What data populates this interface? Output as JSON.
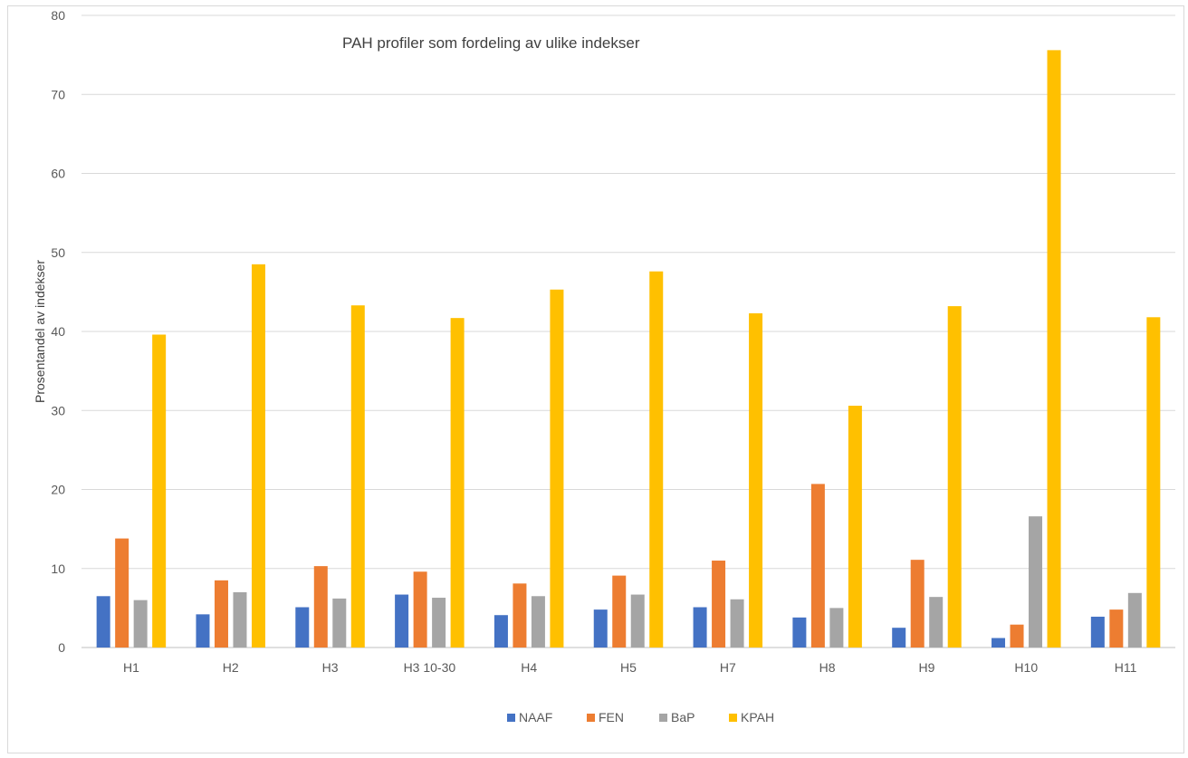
{
  "chart_data": {
    "type": "bar",
    "title": "PAH profiler som fordeling av ulike indekser",
    "xlabel": "",
    "ylabel": "Prosentandel av indekser",
    "ylim": [
      0,
      80
    ],
    "yticks": [
      0,
      10,
      20,
      30,
      40,
      50,
      60,
      70,
      80
    ],
    "grid": true,
    "legend_position": "bottom",
    "categories": [
      "H1",
      "H2",
      "H3",
      "H3 10-30",
      "H4",
      "H5",
      "H7",
      "H8",
      "H9",
      "H10",
      "H11"
    ],
    "series": [
      {
        "name": "NAAF",
        "color": "#4472c4",
        "values": [
          6.5,
          4.2,
          5.1,
          6.7,
          4.1,
          4.8,
          5.1,
          3.8,
          2.5,
          1.2,
          3.9
        ]
      },
      {
        "name": "FEN",
        "color": "#ed7d31",
        "values": [
          13.8,
          8.5,
          10.3,
          9.6,
          8.1,
          9.1,
          11.0,
          20.7,
          11.1,
          2.9,
          4.8
        ]
      },
      {
        "name": "BaP",
        "color": "#a5a5a5",
        "values": [
          6.0,
          7.0,
          6.2,
          6.3,
          6.5,
          6.7,
          6.1,
          5.0,
          6.4,
          16.6,
          6.9
        ]
      },
      {
        "name": "KPAH",
        "color": "#ffc000",
        "values": [
          39.6,
          48.5,
          43.3,
          41.7,
          45.3,
          47.6,
          42.3,
          30.6,
          43.2,
          75.6,
          41.8
        ]
      }
    ]
  }
}
